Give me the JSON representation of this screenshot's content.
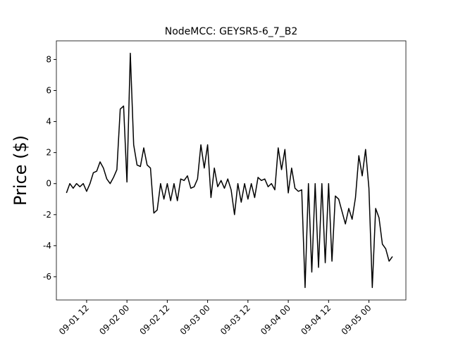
{
  "chart_data": {
    "type": "line",
    "title": "NodeMCC: GEYSR5-6_7_B2",
    "y_label": "Price ($)",
    "x": [
      "09-01 06",
      "09-01 07",
      "09-01 08",
      "09-01 09",
      "09-01 10",
      "09-01 11",
      "09-01 12",
      "09-01 13",
      "09-01 14",
      "09-01 15",
      "09-01 16",
      "09-01 17",
      "09-01 18",
      "09-01 19",
      "09-01 20",
      "09-01 21",
      "09-01 22",
      "09-01 23",
      "09-02 00",
      "09-02 01",
      "09-02 02",
      "09-02 03",
      "09-02 04",
      "09-02 05",
      "09-02 06",
      "09-02 07",
      "09-02 08",
      "09-02 09",
      "09-02 10",
      "09-02 11",
      "09-02 12",
      "09-02 13",
      "09-02 14",
      "09-02 15",
      "09-02 16",
      "09-02 17",
      "09-02 18",
      "09-02 19",
      "09-02 20",
      "09-02 21",
      "09-02 22",
      "09-02 23",
      "09-03 00",
      "09-03 01",
      "09-03 02",
      "09-03 03",
      "09-03 04",
      "09-03 05",
      "09-03 06",
      "09-03 07",
      "09-03 08",
      "09-03 09",
      "09-03 10",
      "09-03 11",
      "09-03 12",
      "09-03 13",
      "09-03 14",
      "09-03 15",
      "09-03 16",
      "09-03 17",
      "09-03 18",
      "09-03 19",
      "09-03 20",
      "09-03 21",
      "09-03 22",
      "09-03 23",
      "09-04 00",
      "09-04 01",
      "09-04 02",
      "09-04 03",
      "09-04 04",
      "09-04 05",
      "09-04 06",
      "09-04 07",
      "09-04 08",
      "09-04 09",
      "09-04 10",
      "09-04 11",
      "09-04 12",
      "09-04 13",
      "09-04 14",
      "09-04 15",
      "09-04 16",
      "09-04 17",
      "09-04 18",
      "09-04 19",
      "09-04 20",
      "09-04 21",
      "09-04 22",
      "09-04 23",
      "09-05 00",
      "09-05 01",
      "09-05 02",
      "09-05 03",
      "09-05 04",
      "09-05 05",
      "09-05 06",
      "09-05 07"
    ],
    "series": [
      {
        "name": "NodeMCC",
        "color": "#000000",
        "values": [
          -0.6,
          0,
          -0.3,
          0,
          -0.2,
          0,
          -0.5,
          0,
          0.7,
          0.8,
          1.4,
          1.0,
          0.3,
          0,
          0.4,
          0.9,
          4.8,
          5.0,
          0.1,
          8.4,
          2.5,
          1.2,
          1.1,
          2.3,
          1.2,
          1.0,
          -1.9,
          -1.7,
          0,
          -1.0,
          0,
          -1.1,
          0,
          -1.1,
          0.3,
          0.2,
          0.5,
          -0.3,
          -0.2,
          0.3,
          2.5,
          1.0,
          2.5,
          -0.9,
          1.0,
          -0.2,
          0.2,
          -0.3,
          0.3,
          -0.4,
          -2.0,
          0,
          -1.2,
          0,
          -1.0,
          0,
          -0.9,
          0.4,
          0.2,
          0.3,
          -0.2,
          0,
          -0.4,
          2.3,
          0.9,
          2.2,
          -0.6,
          1.0,
          -0.3,
          -0.5,
          -0.4,
          -6.7,
          0,
          -5.7,
          0,
          -5.4,
          0,
          -5.1,
          0,
          -5.0,
          -0.8,
          -1.0,
          -1.8,
          -2.6,
          -1.6,
          -2.3,
          -0.9,
          1.8,
          0.5,
          2.2,
          -0.3,
          -6.7,
          -1.6,
          -2.2,
          -3.9,
          -4.2,
          -5.0,
          -4.7
        ]
      }
    ],
    "xlim": [
      "09-01 03",
      "09-05 11"
    ],
    "xticks": [
      "09-01 12",
      "09-02 00",
      "09-02 12",
      "09-03 00",
      "09-03 12",
      "09-04 00",
      "09-04 12",
      "09-05 00"
    ],
    "ylim": [
      -7.5,
      9.2
    ],
    "yticks": [
      -6,
      -4,
      -2,
      0,
      2,
      4,
      6,
      8
    ],
    "grid": false
  }
}
